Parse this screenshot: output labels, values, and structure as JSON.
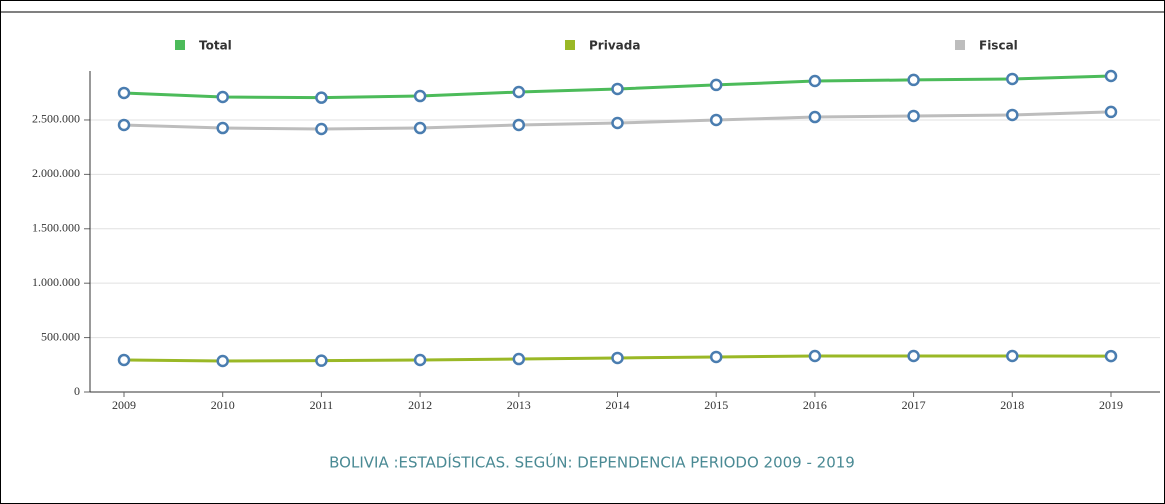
{
  "chart_data": {
    "type": "line",
    "title": "BOLIVIA :ESTADÍSTICAS. SEGÚN: DEPENDENCIA PERIODO 2009 - 2019",
    "categories": [
      "2009",
      "2010",
      "2011",
      "2012",
      "2013",
      "2014",
      "2015",
      "2016",
      "2017",
      "2018",
      "2019"
    ],
    "series": [
      {
        "name": "Total",
        "color": "#4cbb5a",
        "values": [
          2748000,
          2711000,
          2705000,
          2720000,
          2757000,
          2785000,
          2822000,
          2858000,
          2868000,
          2877000,
          2904000
        ]
      },
      {
        "name": "Privada",
        "color": "#9ab826",
        "values": [
          294000,
          285000,
          288000,
          294000,
          303000,
          313000,
          322000,
          331000,
          331000,
          331000,
          330000
        ]
      },
      {
        "name": "Fiscal",
        "color": "#bdbdbd",
        "values": [
          2454000,
          2426000,
          2417000,
          2426000,
          2454000,
          2472000,
          2500000,
          2527000,
          2537000,
          2546000,
          2574000
        ]
      }
    ],
    "marker_color": "#4a7db0",
    "ylim": [
      0,
      2950000
    ],
    "yticks": [
      0,
      {
        "value": 500000,
        "label": "500.000"
      },
      {
        "value": 1000000,
        "label": "1.000.000"
      },
      {
        "value": 1500000,
        "label": "1.500.000"
      },
      {
        "value": 2000000,
        "label": "2.000.000"
      },
      {
        "value": 2500000,
        "label": "2.500.000"
      }
    ],
    "grid": true
  }
}
